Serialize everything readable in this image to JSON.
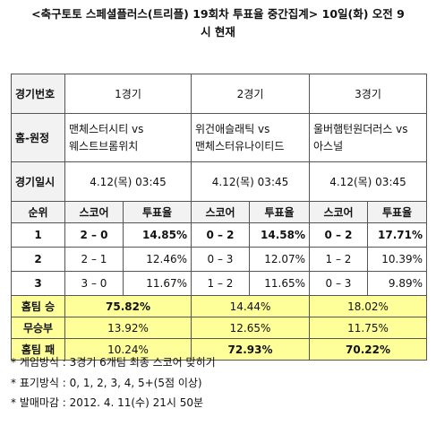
{
  "title_line1": "<축구토토 스페셜플러스(트리플) 19회차 투표율 중간집계> 10일(화) 오전 9",
  "title_line2": "시 현재",
  "header": {
    "game_no_label": "경기번호",
    "game1": "1경기",
    "game2": "2경기",
    "game3": "3경기"
  },
  "matchup_label": "홈-원정",
  "matchups": [
    {
      "home": "맨체스터시티 vs",
      "away": "웨스트브롬위치"
    },
    {
      "home": "위건애슬래틱 vs",
      "away": "맨체스터유나이티드"
    },
    {
      "home": "울버햄턴원더러스 vs",
      "away": "아스널"
    }
  ],
  "date_label": "경기일시",
  "dates": [
    "4.12(목) 03:45",
    "4.12(목) 03:45",
    "4.12(목) 03:45"
  ],
  "col_headers": {
    "rank": "순위",
    "score": "스코어",
    "rate": "투표율"
  },
  "ranks": [
    {
      "rank": "1",
      "cells": [
        {
          "score": "2 – 0",
          "rate": "14.85%"
        },
        {
          "score": "0 – 2",
          "rate": "14.58%"
        },
        {
          "score": "0 – 2",
          "rate": "17.71%"
        }
      ]
    },
    {
      "rank": "2",
      "cells": [
        {
          "score": "2 – 1",
          "rate": "12.46%"
        },
        {
          "score": "0 – 3",
          "rate": "12.07%"
        },
        {
          "score": "1 – 2",
          "rate": "10.39%"
        }
      ]
    },
    {
      "rank": "3",
      "cells": [
        {
          "score": "3 – 0",
          "rate": "11.67%"
        },
        {
          "score": "1 – 2",
          "rate": "11.65%"
        },
        {
          "score": "0 – 3",
          "rate": "9.89%"
        }
      ]
    }
  ],
  "summary": [
    {
      "label": "홈팀 승",
      "values": [
        "75.82%",
        "14.44%",
        "18.02%"
      ]
    },
    {
      "label": "무승부",
      "values": [
        "13.92%",
        "12.65%",
        "11.75%"
      ]
    },
    {
      "label": "홈팀 패",
      "values": [
        "10.24%",
        "72.93%",
        "70.22%"
      ]
    }
  ],
  "notes": [
    "*  게임방식 : 3경기 6개팀 최종 스코어 맞히기",
    "*  표기방식 : 0, 1, 2, 3, 4, 5+(5점 이상)",
    "*  발매마감 : 2012. 4. 11(수) 21시 50분"
  ]
}
